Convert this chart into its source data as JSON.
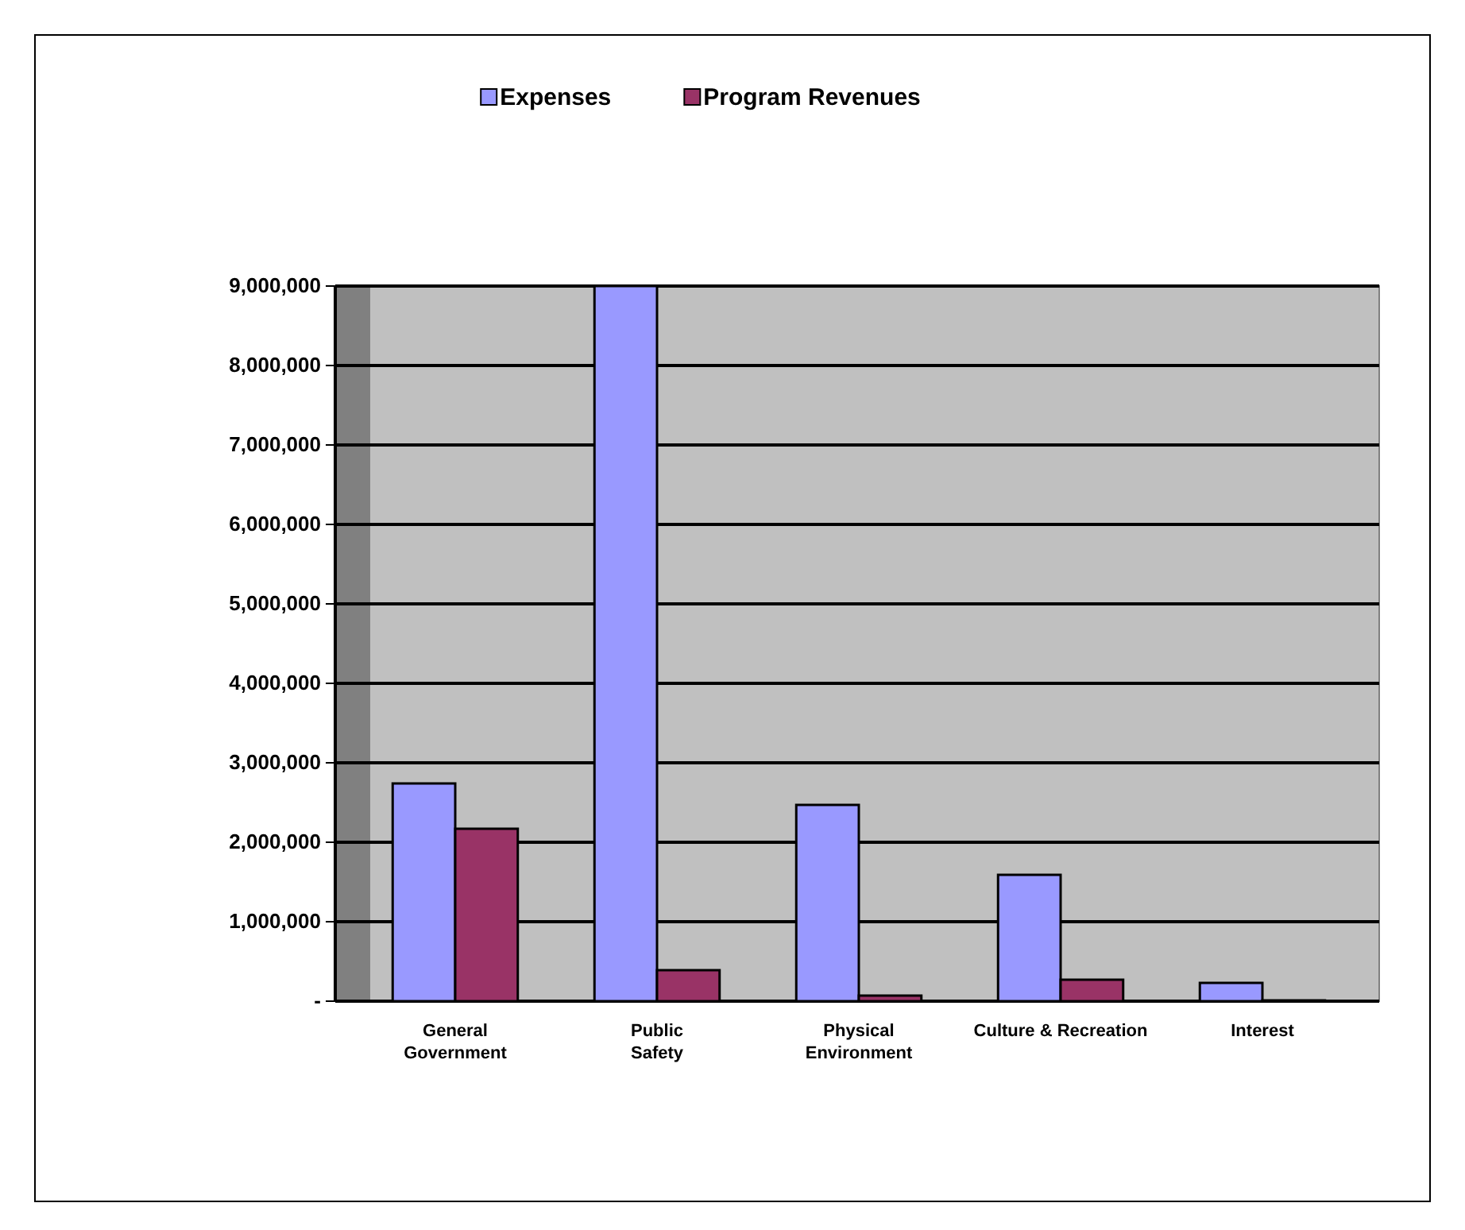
{
  "chart_data": {
    "type": "bar",
    "categories": [
      "General Government",
      "Public Safety",
      "Physical Environment",
      "Culture & Recreation",
      "Interest"
    ],
    "series": [
      {
        "name": "Expenses",
        "color": "#9999ff",
        "values": [
          2740000,
          9000000,
          2470000,
          1590000,
          230000
        ]
      },
      {
        "name": "Program Revenues",
        "color": "#993366",
        "values": [
          2170000,
          390000,
          70000,
          270000,
          10000
        ]
      }
    ],
    "ylim": [
      0,
      9000000
    ],
    "yticks": [
      {
        "value": 0,
        "label": "-"
      },
      {
        "value": 1000000,
        "label": "1,000,000"
      },
      {
        "value": 2000000,
        "label": "2,000,000"
      },
      {
        "value": 3000000,
        "label": "3,000,000"
      },
      {
        "value": 4000000,
        "label": "4,000,000"
      },
      {
        "value": 5000000,
        "label": "5,000,000"
      },
      {
        "value": 6000000,
        "label": "6,000,000"
      },
      {
        "value": 7000000,
        "label": "7,000,000"
      },
      {
        "value": 8000000,
        "label": "8,000,000"
      },
      {
        "value": 9000000,
        "label": "9,000,000"
      }
    ],
    "grid": "y",
    "legend": "top"
  }
}
